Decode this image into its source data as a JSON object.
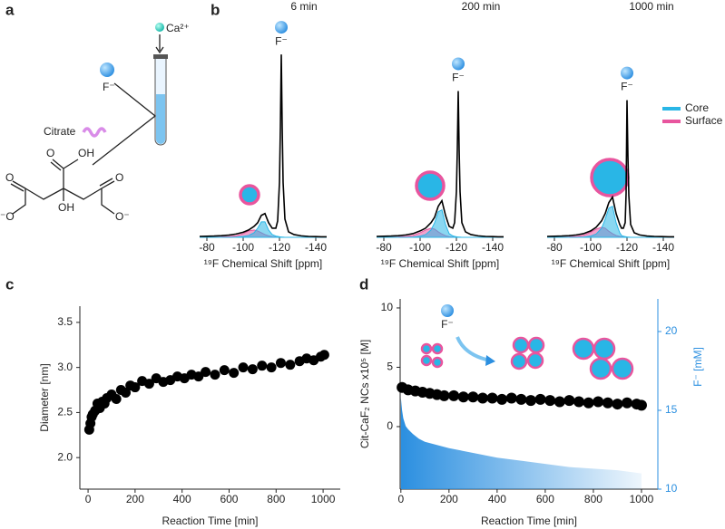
{
  "panel_labels": [
    "a",
    "b",
    "c",
    "d"
  ],
  "diagram": {
    "ion": "Ca²⁺",
    "anion": "F⁻",
    "ligand": "Citrate",
    "atoms": [
      "O",
      "OH",
      "O",
      "⁻O",
      "OH",
      "O",
      "O⁻"
    ]
  },
  "chart_data": [
    {
      "type": "line",
      "title": "6 min",
      "annotation": "F⁻",
      "xlabel": "¹⁹F Chemical Shift [ppm]",
      "xlim": [
        -76,
        -146
      ],
      "xticks": [
        -80,
        -100,
        -120,
        -140
      ],
      "ylim": [
        0,
        105
      ],
      "x": [
        -76,
        -80,
        -84,
        -88,
        -92,
        -96,
        -100,
        -103,
        -106,
        -108,
        -110,
        -112,
        -114,
        -116,
        -118,
        -119,
        -120,
        -120.5,
        -121,
        -121.5,
        -122,
        -123,
        -125,
        -128,
        -132,
        -136,
        -140,
        -143,
        -146
      ],
      "series": [
        {
          "color": "#e8559e",
          "fill": true,
          "values": [
            0,
            0,
            0.1,
            0.2,
            0.4,
            0.8,
            2,
            3.5,
            4,
            3.5,
            2.5,
            1.5,
            0.8,
            0.4,
            0.2,
            0.1,
            0.1,
            0,
            0,
            0,
            0,
            0,
            0,
            0,
            0,
            0,
            0,
            0,
            0
          ]
        },
        {
          "color": "#29b6e6",
          "fill": true,
          "values": [
            0,
            0,
            0,
            0,
            0,
            0.1,
            0.5,
            1,
            2.5,
            5,
            8.5,
            8.5,
            4,
            1.5,
            0.7,
            0.5,
            0.3,
            0.2,
            0.2,
            0.1,
            0.1,
            0,
            0,
            0,
            0,
            0,
            0,
            0,
            0
          ]
        },
        {
          "color": "#000000",
          "fill": false,
          "values": [
            0.5,
            0.6,
            0.7,
            0.9,
            1.2,
            1.8,
            2.8,
            4,
            6,
            8,
            12,
            13,
            8,
            5,
            5,
            9,
            30,
            60,
            100,
            60,
            30,
            10,
            3,
            1.5,
            0.8,
            0.5,
            0.4,
            0.3,
            0.3
          ]
        }
      ]
    },
    {
      "type": "line",
      "title": "200 min",
      "annotation": "F⁻",
      "xlabel": "¹⁹F Chemical Shift [ppm]",
      "xlim": [
        -76,
        -146
      ],
      "xticks": [
        -80,
        -100,
        -120,
        -140
      ],
      "ylim": [
        0,
        105
      ],
      "x": [
        -76,
        -80,
        -84,
        -88,
        -92,
        -96,
        -100,
        -103,
        -106,
        -108,
        -110,
        -112,
        -114,
        -116,
        -118,
        -119,
        -120,
        -120.5,
        -121,
        -121.5,
        -122,
        -123,
        -125,
        -128,
        -132,
        -136,
        -140,
        -143,
        -146
      ],
      "series": [
        {
          "color": "#e8559e",
          "fill": true,
          "values": [
            0,
            0,
            0.1,
            0.2,
            0.5,
            1,
            2.5,
            4,
            5,
            4.5,
            3,
            1.8,
            0.9,
            0.4,
            0.2,
            0.1,
            0.1,
            0,
            0,
            0,
            0,
            0,
            0,
            0,
            0,
            0,
            0,
            0,
            0
          ]
        },
        {
          "color": "#29b6e6",
          "fill": true,
          "values": [
            0,
            0,
            0,
            0,
            0,
            0.1,
            0.6,
            1.5,
            4,
            8,
            14,
            15,
            7,
            2,
            0.8,
            0.5,
            0.3,
            0.2,
            0.2,
            0.1,
            0.1,
            0,
            0,
            0,
            0,
            0,
            0,
            0,
            0
          ]
        },
        {
          "color": "#000000",
          "fill": false,
          "values": [
            0.5,
            0.6,
            0.7,
            0.9,
            1.3,
            2,
            3.5,
            5,
            8,
            11,
            17,
            20,
            12,
            6,
            5,
            8,
            25,
            48,
            80,
            48,
            25,
            8,
            3,
            1.5,
            0.8,
            0.5,
            0.4,
            0.3,
            0.3
          ]
        }
      ]
    },
    {
      "type": "line",
      "title": "1000 min",
      "annotation": "F⁻",
      "xlabel": "¹⁹F Chemical Shift [ppm]",
      "xlim": [
        -76,
        -146
      ],
      "xticks": [
        -80,
        -100,
        -120,
        -140
      ],
      "ylim": [
        0,
        105
      ],
      "legend": "top-right",
      "x": [
        -76,
        -80,
        -84,
        -88,
        -92,
        -96,
        -100,
        -103,
        -106,
        -108,
        -110,
        -112,
        -114,
        -116,
        -117,
        -118,
        -119,
        -119.5,
        -120,
        -120.5,
        -121,
        -122,
        -124,
        -127,
        -131,
        -135,
        -139,
        -143,
        -146
      ],
      "series": [
        {
          "name": "Surface",
          "color": "#e8559e",
          "fill": true,
          "values": [
            0,
            0,
            0.1,
            0.2,
            0.5,
            1.1,
            2.8,
            4.5,
            5.5,
            5,
            3.3,
            2,
            1,
            0.5,
            0.3,
            0.2,
            0.1,
            0,
            0,
            0,
            0,
            0,
            0,
            0,
            0,
            0,
            0,
            0,
            0
          ]
        },
        {
          "name": "Core",
          "color": "#29b6e6",
          "fill": true,
          "values": [
            0,
            0,
            0,
            0,
            0,
            0.1,
            0.7,
            1.8,
            5,
            10,
            16,
            17,
            8,
            2.5,
            1,
            0.6,
            0.4,
            0.3,
            0.2,
            0.1,
            0.1,
            0,
            0,
            0,
            0,
            0,
            0,
            0,
            0
          ]
        },
        {
          "color": "#000000",
          "fill": false,
          "values": [
            0.5,
            0.6,
            0.7,
            0.9,
            1.3,
            2,
            3.5,
            5.5,
            9,
            13,
            19,
            22,
            13,
            7,
            5,
            5,
            8,
            24,
            75,
            45,
            23,
            7,
            2.5,
            1.3,
            0.7,
            0.5,
            0.4,
            0.3,
            0.3
          ]
        }
      ]
    },
    {
      "type": "scatter",
      "xlabel": "Reaction Time [min]",
      "ylabel": "Diameter [nm]",
      "xlim": [
        -35,
        1073
      ],
      "xticks": [
        0,
        200,
        400,
        600,
        800,
        1000
      ],
      "ylim": [
        1.65,
        3.68
      ],
      "yticks": [
        {
          "value": 2,
          "label": "2.0"
        },
        2.5,
        {
          "value": 3,
          "label": "3.0"
        },
        3.5
      ],
      "series": [
        {
          "color": "#000000",
          "x": [
            5,
            10,
            15,
            20,
            30,
            40,
            50,
            60,
            70,
            80,
            100,
            120,
            140,
            160,
            180,
            200,
            230,
            260,
            290,
            320,
            350,
            380,
            410,
            440,
            470,
            500,
            540,
            580,
            620,
            660,
            700,
            740,
            780,
            820,
            860,
            900,
            930,
            960,
            990,
            1005
          ],
          "values": [
            2.31,
            2.38,
            2.45,
            2.48,
            2.52,
            2.6,
            2.55,
            2.62,
            2.6,
            2.66,
            2.7,
            2.65,
            2.75,
            2.72,
            2.8,
            2.78,
            2.85,
            2.82,
            2.88,
            2.84,
            2.86,
            2.9,
            2.88,
            2.92,
            2.9,
            2.95,
            2.92,
            2.97,
            2.94,
            3.0,
            2.98,
            3.02,
            3.0,
            3.05,
            3.03,
            3.07,
            3.1,
            3.08,
            3.12,
            3.14
          ]
        }
      ]
    },
    {
      "type": "scatter",
      "annotation": "F⁻",
      "xlabel": "Reaction Time [min]",
      "ylabel": "Cit-CaF₂ NCs x10⁵ [M]",
      "y2label": "F⁻ [mM]",
      "xlim": [
        -3,
        1068
      ],
      "xticks": [
        0,
        200,
        400,
        600,
        800,
        1000
      ],
      "ylim": [
        -5.27,
        10.76
      ],
      "yticks": [
        0,
        5,
        10
      ],
      "y2lim": [
        10,
        22.07
      ],
      "y2ticks": [
        10,
        15,
        20
      ],
      "series": [
        {
          "type": "area",
          "axis": "y2",
          "color": "#2b8fe0",
          "x": [
            0,
            5,
            10,
            20,
            30,
            50,
            75,
            100,
            150,
            200,
            300,
            400,
            500,
            600,
            700,
            800,
            900,
            1000
          ],
          "values": [
            15.8,
            15,
            14.5,
            14,
            13.8,
            13.5,
            13.2,
            13.0,
            12.8,
            12.6,
            12.3,
            12.0,
            11.8,
            11.6,
            11.4,
            11.3,
            11.2,
            11.0
          ]
        },
        {
          "type": "scatter",
          "color": "#000000",
          "x": [
            5,
            30,
            60,
            90,
            120,
            150,
            180,
            220,
            260,
            300,
            340,
            380,
            420,
            460,
            500,
            540,
            580,
            620,
            660,
            700,
            740,
            780,
            820,
            860,
            900,
            940,
            980,
            1000
          ],
          "values": [
            3.3,
            3.1,
            3.0,
            2.9,
            2.8,
            2.7,
            2.6,
            2.6,
            2.5,
            2.5,
            2.4,
            2.4,
            2.3,
            2.4,
            2.3,
            2.2,
            2.3,
            2.2,
            2.1,
            2.2,
            2.1,
            2.0,
            2.1,
            2.0,
            1.9,
            2.0,
            1.9,
            1.8
          ]
        }
      ]
    }
  ]
}
